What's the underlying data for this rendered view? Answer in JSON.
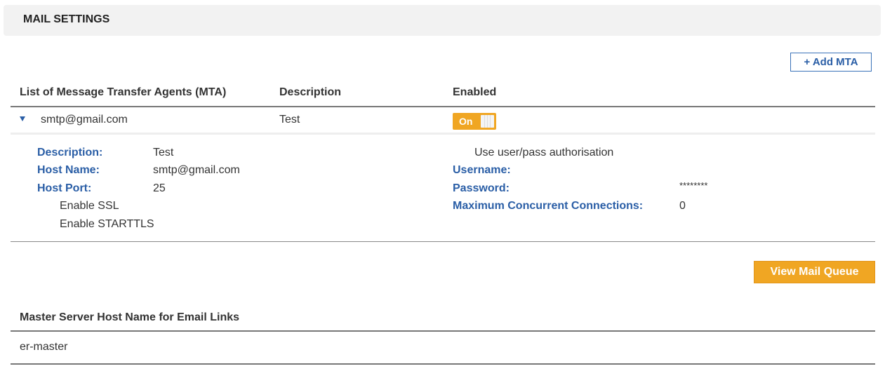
{
  "header": {
    "title": "MAIL SETTINGS"
  },
  "toolbar": {
    "add_mta_label": "+ Add MTA",
    "view_queue_label": "View Mail Queue"
  },
  "colors": {
    "accent_orange": "#f0a623",
    "label_blue": "#2a5ea6"
  },
  "table": {
    "columns": [
      "List of Message Transfer Agents (MTA)",
      "Description",
      "Enabled"
    ],
    "rows": [
      {
        "name": "smtp@gmail.com",
        "description": "Test",
        "enabled": true,
        "toggle_label": "On",
        "expand_icon": "caret-down-icon"
      }
    ]
  },
  "details": {
    "left": [
      {
        "label": "Description:",
        "value": "Test"
      },
      {
        "label": "Host Name:",
        "value": "smtp@gmail.com"
      },
      {
        "label": "Host Port:",
        "value": "25"
      }
    ],
    "options": [
      "Enable SSL",
      "Enable STARTTLS"
    ],
    "auth_option": "Use user/pass authorisation",
    "right": [
      {
        "label": "Username:",
        "value": ""
      },
      {
        "label": "Password:",
        "value": "********"
      },
      {
        "label": "Maximum Concurrent Connections:",
        "value": "0"
      }
    ]
  },
  "master": {
    "heading": "Master Server Host Name for Email Links",
    "value": "er-master"
  }
}
